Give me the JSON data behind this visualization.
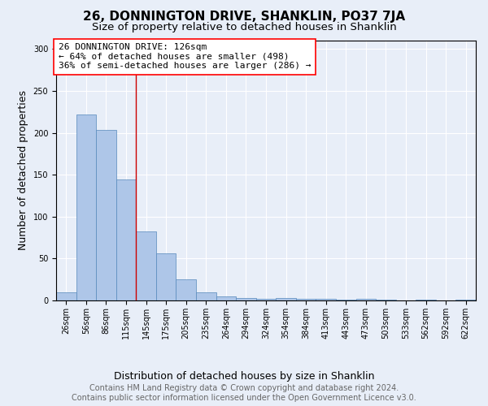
{
  "title": "26, DONNINGTON DRIVE, SHANKLIN, PO37 7JA",
  "subtitle": "Size of property relative to detached houses in Shanklin",
  "xlabel": "Distribution of detached houses by size in Shanklin",
  "ylabel": "Number of detached properties",
  "footer_line1": "Contains HM Land Registry data © Crown copyright and database right 2024.",
  "footer_line2": "Contains public sector information licensed under the Open Government Licence v3.0.",
  "annotation_line1": "26 DONNINGTON DRIVE: 126sqm",
  "annotation_line2": "← 64% of detached houses are smaller (498)",
  "annotation_line3": "36% of semi-detached houses are larger (286) →",
  "bar_labels": [
    "26sqm",
    "56sqm",
    "86sqm",
    "115sqm",
    "145sqm",
    "175sqm",
    "205sqm",
    "235sqm",
    "264sqm",
    "294sqm",
    "324sqm",
    "354sqm",
    "384sqm",
    "413sqm",
    "443sqm",
    "473sqm",
    "503sqm",
    "533sqm",
    "562sqm",
    "592sqm",
    "622sqm"
  ],
  "bar_values": [
    10,
    222,
    203,
    144,
    82,
    56,
    25,
    10,
    5,
    3,
    2,
    3,
    2,
    2,
    1,
    2,
    1,
    0,
    1,
    0,
    1
  ],
  "bar_color": "#aec6e8",
  "bar_edge_color": "#5588bb",
  "reference_line_x": 3.5,
  "reference_line_color": "#cc0000",
  "background_color": "#e8eef8",
  "plot_background_color": "#e8eef8",
  "ylim": [
    0,
    310
  ],
  "yticks": [
    0,
    50,
    100,
    150,
    200,
    250,
    300
  ],
  "title_fontsize": 11,
  "subtitle_fontsize": 9.5,
  "axis_label_fontsize": 9,
  "tick_fontsize": 7,
  "annotation_fontsize": 8,
  "footer_fontsize": 7
}
